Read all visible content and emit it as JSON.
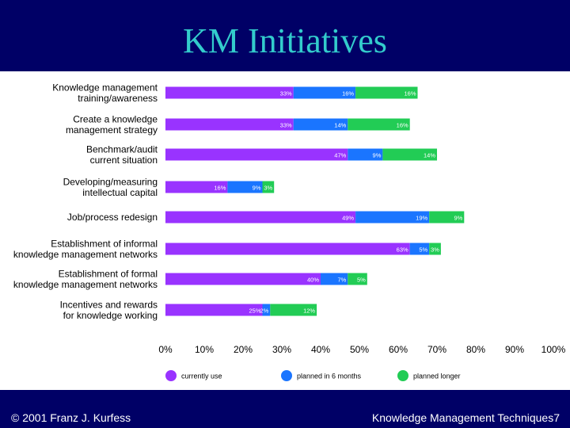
{
  "slide": {
    "title": "KM Initiatives",
    "footer_left": "© 2001 Franz J. Kurfess",
    "footer_right": "Knowledge Management Techniques7"
  },
  "chart_data": {
    "type": "bar",
    "stacked": true,
    "orientation": "horizontal",
    "categories": [
      [
        "Knowledge management",
        "training/awareness"
      ],
      [
        "Create a knowledge",
        "management strategy"
      ],
      [
        "Benchmark/audit",
        "current situation"
      ],
      [
        "Developing/measuring",
        "intellectual capital"
      ],
      [
        "Job/process redesign"
      ],
      [
        "Establishment of informal",
        "knowledge management networks"
      ],
      [
        "Establishment of formal",
        "knowledge management networks"
      ],
      [
        "Incentives and rewards",
        "for knowledge working"
      ]
    ],
    "series": [
      {
        "name": "currently use",
        "color": "#9933ff",
        "values": [
          33,
          33,
          47,
          16,
          49,
          63,
          40,
          25
        ]
      },
      {
        "name": "planned in 6 months",
        "color": "#1a75ff",
        "values": [
          16,
          14,
          9,
          9,
          19,
          5,
          7,
          2
        ]
      },
      {
        "name": "planned longer",
        "color": "#22cc55",
        "values": [
          16,
          16,
          14,
          3,
          9,
          3,
          5,
          12
        ]
      }
    ],
    "labels": [
      [
        "33%",
        "16%",
        "16%"
      ],
      [
        "33%",
        "14%",
        "16%"
      ],
      [
        "47%",
        "9%",
        "14%"
      ],
      [
        "16%",
        "9%",
        "3%"
      ],
      [
        "49%",
        "19%",
        "9%"
      ],
      [
        "63%",
        "5%",
        "3%"
      ],
      [
        "40%",
        "7%",
        "5%"
      ],
      [
        "25%",
        "2%",
        "12%"
      ]
    ],
    "xticks": [
      "0%",
      "10%",
      "20%",
      "30%",
      "40%",
      "50%",
      "60%",
      "70%",
      "80%",
      "90%",
      "100%"
    ],
    "xlim": [
      0,
      100
    ],
    "legend_position": "bottom",
    "grid": false
  }
}
